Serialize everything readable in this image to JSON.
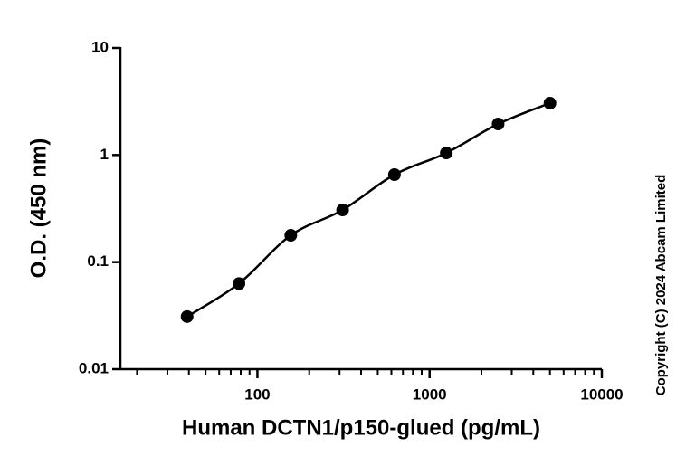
{
  "chart_data": {
    "type": "scatter",
    "x_label": "Human DCTN1/p150-glued (pg/mL)",
    "y_label": "O.D. (450 nm)",
    "annotation": "Copyright (C) 2024 Abcam Limited",
    "x": [
      39.06,
      78.13,
      156.25,
      312.5,
      625,
      1250,
      2500,
      5000
    ],
    "values": [
      0.031,
      0.063,
      0.178,
      0.307,
      0.656,
      1.045,
      1.95,
      3.05
    ],
    "color": "#000000",
    "fit_line": true,
    "x_log": true,
    "y_log": true,
    "xlim": [
      16,
      10000
    ],
    "ylim": [
      0.01,
      10
    ],
    "xticks": [
      100,
      1000,
      10000
    ],
    "xminorticks": [
      20,
      30,
      40,
      50,
      60,
      70,
      80,
      90,
      200,
      300,
      400,
      500,
      600,
      700,
      800,
      900,
      2000,
      3000,
      4000,
      5000,
      6000,
      7000,
      8000,
      9000
    ],
    "yticks": [
      0.01,
      0.1,
      1,
      10
    ],
    "grid": false
  }
}
